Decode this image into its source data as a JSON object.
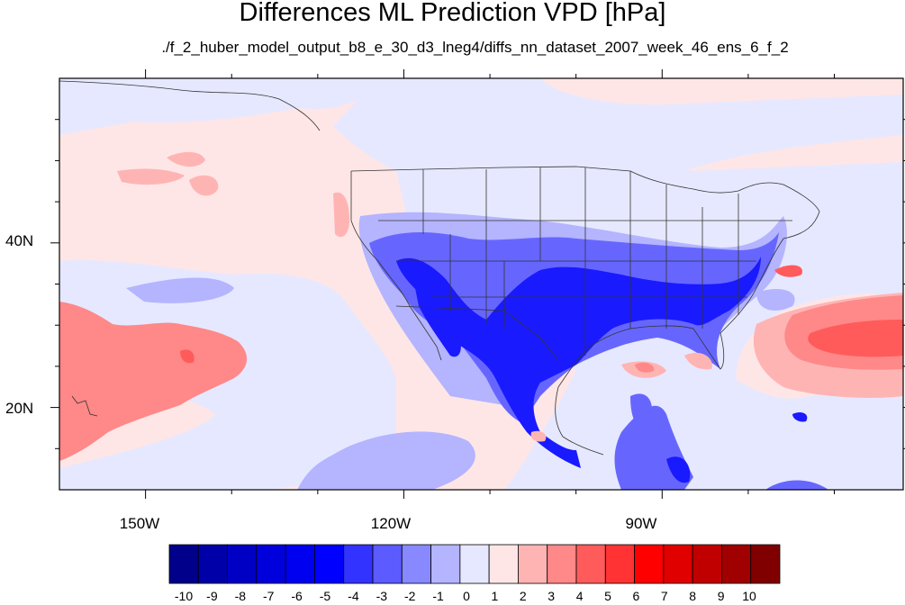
{
  "title": "Differences ML Prediction VPD [hPa]",
  "subtitle": "./f_2_huber_model_output_b8_e_30_d3_lneg4/diffs_nn_dataset_2007_week_46_ens_6_f_2",
  "axes": {
    "lat_labels": [
      {
        "value": 40,
        "label": "40N"
      },
      {
        "value": 20,
        "label": "20N"
      }
    ],
    "lon_labels": [
      {
        "value": -150,
        "label": "150W"
      },
      {
        "value": -120,
        "label": "120W"
      },
      {
        "value": -90,
        "label": "90W"
      }
    ],
    "lon_range": [
      -160,
      -62
    ],
    "lat_range": [
      10,
      60
    ]
  },
  "colorbar": {
    "labels": [
      "-10",
      "-9",
      "-8",
      "-7",
      "-6",
      "-5",
      "-4",
      "-3",
      "-2",
      "-1",
      "0",
      "1",
      "2",
      "3",
      "4",
      "5",
      "6",
      "7",
      "8",
      "9",
      "10"
    ],
    "colors": [
      "#00008a",
      "#0000a8",
      "#0000c4",
      "#0000dd",
      "#0000f0",
      "#0000ff",
      "#3333ff",
      "#5b5bff",
      "#8888ff",
      "#b4b4ff",
      "#e6e8ff",
      "#ffe6e6",
      "#ffb4b4",
      "#ff8888",
      "#ff5b5b",
      "#ff3333",
      "#ff0000",
      "#e00000",
      "#c00000",
      "#a00000",
      "#800000"
    ]
  }
}
